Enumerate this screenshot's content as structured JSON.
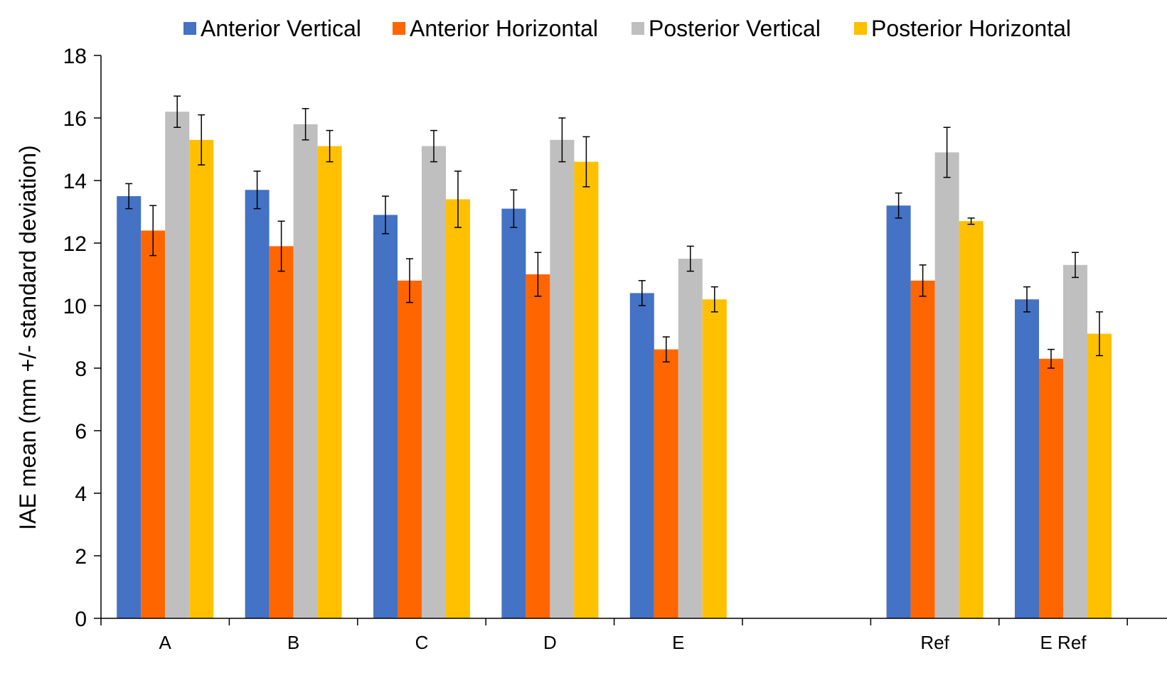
{
  "chart_data": {
    "type": "bar",
    "ylabel": "IAE mean (mm +/- standard deviation)",
    "xlabel": "",
    "ylim": [
      0,
      18
    ],
    "yticks": [
      0,
      2,
      4,
      6,
      8,
      10,
      12,
      14,
      16,
      18
    ],
    "grid": false,
    "legend_position": "top",
    "categories": [
      "A",
      "B",
      "C",
      "D",
      "E",
      "",
      "Ref",
      "E Ref"
    ],
    "series": [
      {
        "name": "Anterior Vertical",
        "color": "#4472C4",
        "values": [
          13.5,
          13.7,
          12.9,
          13.1,
          10.4,
          null,
          13.2,
          10.2
        ],
        "errors": [
          0.4,
          0.6,
          0.6,
          0.6,
          0.4,
          null,
          0.4,
          0.4
        ]
      },
      {
        "name": "Anterior Horizontal",
        "color": "#FF6600",
        "values": [
          12.4,
          11.9,
          10.8,
          11.0,
          8.6,
          null,
          10.8,
          8.3
        ],
        "errors": [
          0.8,
          0.8,
          0.7,
          0.7,
          0.4,
          null,
          0.5,
          0.3
        ]
      },
      {
        "name": "Posterior Vertical",
        "color": "#BFBFBF",
        "values": [
          16.2,
          15.8,
          15.1,
          15.3,
          11.5,
          null,
          14.9,
          11.3
        ],
        "errors": [
          0.5,
          0.5,
          0.5,
          0.7,
          0.4,
          null,
          0.8,
          0.4
        ]
      },
      {
        "name": "Posterior Horizontal",
        "color": "#FFC000",
        "values": [
          15.3,
          15.1,
          13.4,
          14.6,
          10.2,
          null,
          12.7,
          9.1
        ],
        "errors": [
          0.8,
          0.5,
          0.9,
          0.8,
          0.4,
          null,
          0.1,
          0.7
        ]
      }
    ]
  }
}
